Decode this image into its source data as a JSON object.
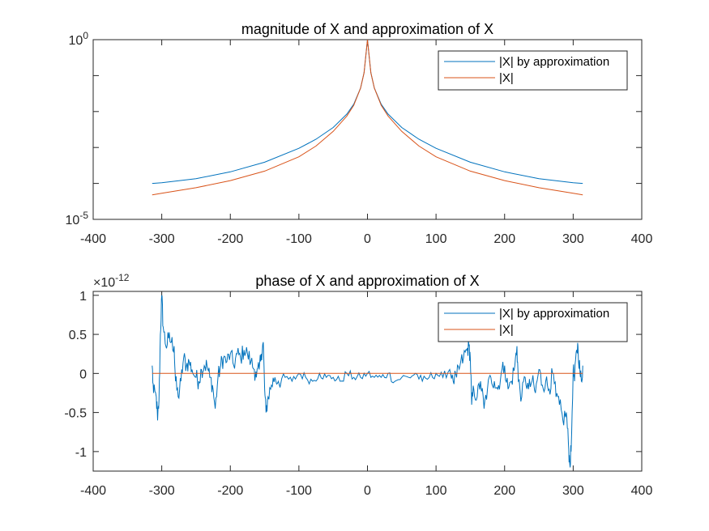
{
  "chart_data": [
    {
      "type": "line",
      "title": "magnitude of X and approximation of X",
      "xlabel": "",
      "ylabel": "",
      "xlim": [
        -400,
        400
      ],
      "ylim": [
        1e-05,
        1
      ],
      "yscale": "log",
      "xticks": [
        -400,
        -300,
        -200,
        -100,
        0,
        100,
        200,
        300,
        400
      ],
      "yticks": [
        {
          "value": 1e-05,
          "base": "10",
          "exp": "-5"
        },
        {
          "value": 1,
          "base": "10",
          "exp": "0"
        }
      ],
      "legend_position": "top-right",
      "series": [
        {
          "name": "|X| by approximation",
          "color": "#0072BD",
          "points": [
            [
              -314,
              0.0001
            ],
            [
              -300,
              0.000105
            ],
            [
              -250,
              0.000135
            ],
            [
              -200,
              0.00021
            ],
            [
              -150,
              0.00039
            ],
            [
              -100,
              0.00095
            ],
            [
              -75,
              0.0017
            ],
            [
              -50,
              0.0036
            ],
            [
              -30,
              0.0085
            ],
            [
              -20,
              0.016
            ],
            [
              -10,
              0.045
            ],
            [
              -5,
              0.12
            ],
            [
              -2,
              0.42
            ],
            [
              0,
              1
            ],
            [
              2,
              0.42
            ],
            [
              5,
              0.12
            ],
            [
              10,
              0.045
            ],
            [
              20,
              0.016
            ],
            [
              30,
              0.0085
            ],
            [
              50,
              0.0036
            ],
            [
              75,
              0.0017
            ],
            [
              100,
              0.00095
            ],
            [
              150,
              0.00039
            ],
            [
              200,
              0.00021
            ],
            [
              250,
              0.000135
            ],
            [
              300,
              0.000105
            ],
            [
              314,
              0.0001
            ]
          ]
        },
        {
          "name": "|X|",
          "color": "#D95319",
          "points": [
            [
              -314,
              4.8e-05
            ],
            [
              -300,
              5.3e-05
            ],
            [
              -250,
              7.6e-05
            ],
            [
              -200,
              0.00012
            ],
            [
              -150,
              0.00022
            ],
            [
              -100,
              0.00055
            ],
            [
              -75,
              0.0011
            ],
            [
              -50,
              0.0028
            ],
            [
              -30,
              0.0075
            ],
            [
              -20,
              0.015
            ],
            [
              -10,
              0.045
            ],
            [
              -5,
              0.12
            ],
            [
              -2,
              0.42
            ],
            [
              0,
              1
            ],
            [
              2,
              0.42
            ],
            [
              5,
              0.12
            ],
            [
              10,
              0.045
            ],
            [
              20,
              0.015
            ],
            [
              30,
              0.0075
            ],
            [
              50,
              0.0028
            ],
            [
              75,
              0.0011
            ],
            [
              100,
              0.00055
            ],
            [
              150,
              0.00022
            ],
            [
              200,
              0.00012
            ],
            [
              250,
              7.6e-05
            ],
            [
              300,
              5.3e-05
            ],
            [
              314,
              4.8e-05
            ]
          ]
        }
      ]
    },
    {
      "type": "line",
      "title": "phase of X and approximation of X",
      "xlabel": "",
      "ylabel": "",
      "xlim": [
        -400,
        400
      ],
      "ylim": [
        -1.25,
        1.05
      ],
      "y_multiplier": "×10",
      "y_multiplier_exp": "-12",
      "xticks": [
        -400,
        -300,
        -200,
        -100,
        0,
        100,
        200,
        300,
        400
      ],
      "yticks": [
        -1,
        -0.5,
        0,
        0.5,
        1
      ],
      "legend_position": "top-right",
      "series": [
        {
          "name": "|X| by approximation",
          "color": "#0072BD",
          "noisy": true,
          "points": [
            [
              -314,
              0.1
            ],
            [
              -312,
              -0.25
            ],
            [
              -308,
              -0.3
            ],
            [
              -306,
              -0.6
            ],
            [
              -304,
              -0.35
            ],
            [
              -302,
              0.5
            ],
            [
              -300,
              1.0
            ],
            [
              -298,
              0.6
            ],
            [
              -294,
              0.35
            ],
            [
              -290,
              0.45
            ],
            [
              -286,
              0.4
            ],
            [
              -282,
              0.35
            ],
            [
              -280,
              -0.1
            ],
            [
              -276,
              -0.3
            ],
            [
              -272,
              -0.1
            ],
            [
              -268,
              0.2
            ],
            [
              -264,
              0.1
            ],
            [
              -260,
              0.15
            ],
            [
              -256,
              0.05
            ],
            [
              -250,
              -0.05
            ],
            [
              -246,
              -0.1
            ],
            [
              -242,
              0.05
            ],
            [
              -238,
              0.1
            ],
            [
              -234,
              0.1
            ],
            [
              -230,
              -0.05
            ],
            [
              -226,
              -0.15
            ],
            [
              -222,
              -0.45
            ],
            [
              -218,
              -0.05
            ],
            [
              -214,
              0.1
            ],
            [
              -210,
              0.2
            ],
            [
              -205,
              0.15
            ],
            [
              -200,
              0.25
            ],
            [
              -195,
              0.1
            ],
            [
              -190,
              0.25
            ],
            [
              -185,
              0.2
            ],
            [
              -180,
              0.3
            ],
            [
              -175,
              0.25
            ],
            [
              -170,
              0.15
            ],
            [
              -165,
              0.05
            ],
            [
              -162,
              -0.05
            ],
            [
              -158,
              0.05
            ],
            [
              -155,
              0.25
            ],
            [
              -152,
              0.4
            ],
            [
              -150,
              -0.2
            ],
            [
              -148,
              -0.5
            ],
            [
              -145,
              -0.3
            ],
            [
              -140,
              -0.15
            ],
            [
              -135,
              -0.05
            ],
            [
              -130,
              -0.1
            ],
            [
              -120,
              -0.05
            ],
            [
              -110,
              -0.1
            ],
            [
              -100,
              0.0
            ],
            [
              -90,
              -0.05
            ],
            [
              -80,
              -0.1
            ],
            [
              -70,
              0.0
            ],
            [
              -60,
              -0.05
            ],
            [
              -50,
              -0.05
            ],
            [
              -40,
              -0.1
            ],
            [
              -30,
              0.0
            ],
            [
              -20,
              -0.05
            ],
            [
              -10,
              -0.05
            ],
            [
              0,
              0.0
            ],
            [
              10,
              -0.05
            ],
            [
              20,
              -0.05
            ],
            [
              30,
              0.0
            ],
            [
              40,
              -0.1
            ],
            [
              50,
              -0.05
            ],
            [
              60,
              -0.05
            ],
            [
              70,
              0.0
            ],
            [
              80,
              -0.1
            ],
            [
              90,
              -0.05
            ],
            [
              100,
              0.0
            ],
            [
              110,
              -0.05
            ],
            [
              120,
              0.05
            ],
            [
              125,
              -0.1
            ],
            [
              130,
              -0.05
            ],
            [
              135,
              0.1
            ],
            [
              140,
              0.2
            ],
            [
              145,
              0.3
            ],
            [
              148,
              0.35
            ],
            [
              150,
              0.2
            ],
            [
              152,
              -0.4
            ],
            [
              155,
              -0.2
            ],
            [
              160,
              -0.3
            ],
            [
              165,
              -0.1
            ],
            [
              170,
              -0.45
            ],
            [
              175,
              -0.2
            ],
            [
              180,
              -0.05
            ],
            [
              185,
              -0.1
            ],
            [
              190,
              -0.2
            ],
            [
              195,
              0.0
            ],
            [
              200,
              0.1
            ],
            [
              205,
              -0.2
            ],
            [
              210,
              -0.1
            ],
            [
              215,
              0.1
            ],
            [
              218,
              0.35
            ],
            [
              220,
              -0.1
            ],
            [
              225,
              -0.3
            ],
            [
              230,
              -0.05
            ],
            [
              235,
              -0.2
            ],
            [
              240,
              -0.1
            ],
            [
              245,
              -0.25
            ],
            [
              250,
              0.05
            ],
            [
              255,
              -0.15
            ],
            [
              260,
              -0.1
            ],
            [
              265,
              -0.2
            ],
            [
              270,
              0.0
            ],
            [
              275,
              -0.3
            ],
            [
              280,
              -0.4
            ],
            [
              285,
              -0.6
            ],
            [
              290,
              -0.5
            ],
            [
              293,
              -0.9
            ],
            [
              295,
              -1.15
            ],
            [
              297,
              -1.0
            ],
            [
              300,
              0.05
            ],
            [
              302,
              -0.1
            ],
            [
              305,
              0.3
            ],
            [
              307,
              0.35
            ],
            [
              310,
              0.0
            ],
            [
              312,
              -0.1
            ],
            [
              314,
              0.1
            ]
          ]
        },
        {
          "name": "|X|",
          "color": "#D95319",
          "points": [
            [
              -314,
              0
            ],
            [
              314,
              0
            ]
          ]
        }
      ]
    }
  ]
}
